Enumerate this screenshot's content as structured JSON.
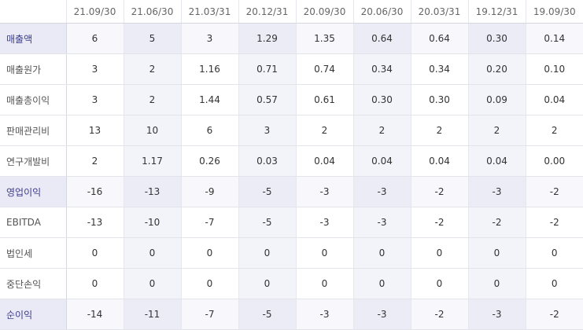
{
  "table": {
    "columns": [
      "21.09/30",
      "21.06/30",
      "21.03/31",
      "20.12/31",
      "20.09/30",
      "20.06/30",
      "20.03/31",
      "19.12/31",
      "19.09/30"
    ],
    "rows": [
      {
        "label": "매출액",
        "highlight": true,
        "values": [
          "6",
          "5",
          "3",
          "1.29",
          "1.35",
          "0.64",
          "0.64",
          "0.30",
          "0.14"
        ]
      },
      {
        "label": "매출원가",
        "highlight": false,
        "values": [
          "3",
          "2",
          "1.16",
          "0.71",
          "0.74",
          "0.34",
          "0.34",
          "0.20",
          "0.10"
        ]
      },
      {
        "label": "매출총이익",
        "highlight": false,
        "values": [
          "3",
          "2",
          "1.44",
          "0.57",
          "0.61",
          "0.30",
          "0.30",
          "0.09",
          "0.04"
        ]
      },
      {
        "label": "판매관리비",
        "highlight": false,
        "values": [
          "13",
          "10",
          "6",
          "3",
          "2",
          "2",
          "2",
          "2",
          "2"
        ]
      },
      {
        "label": "연구개발비",
        "highlight": false,
        "values": [
          "2",
          "1.17",
          "0.26",
          "0.03",
          "0.04",
          "0.04",
          "0.04",
          "0.04",
          "0.00"
        ]
      },
      {
        "label": "영업이익",
        "highlight": true,
        "values": [
          "-16",
          "-13",
          "-9",
          "-5",
          "-3",
          "-3",
          "-2",
          "-3",
          "-2"
        ]
      },
      {
        "label": "EBITDA",
        "highlight": false,
        "values": [
          "-13",
          "-10",
          "-7",
          "-5",
          "-3",
          "-3",
          "-2",
          "-2",
          "-2"
        ]
      },
      {
        "label": "법인세",
        "highlight": false,
        "values": [
          "0",
          "0",
          "0",
          "0",
          "0",
          "0",
          "0",
          "0",
          "0"
        ]
      },
      {
        "label": "중단손익",
        "highlight": false,
        "values": [
          "0",
          "0",
          "0",
          "0",
          "0",
          "0",
          "0",
          "0",
          "0"
        ]
      },
      {
        "label": "순이익",
        "highlight": true,
        "values": [
          "-14",
          "-11",
          "-7",
          "-5",
          "-3",
          "-3",
          "-2",
          "-3",
          "-2"
        ]
      }
    ]
  },
  "colors": {
    "row_highlight_label_bg": "#eaeaf6",
    "row_highlight_label_text": "#3c3c8c",
    "column_highlight_bg": "#f3f3fa"
  }
}
